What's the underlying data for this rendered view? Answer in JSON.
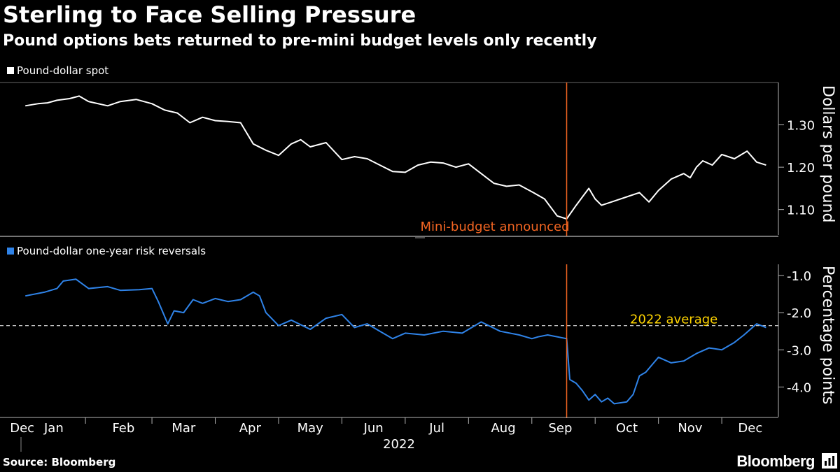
{
  "header": {
    "title": "Sterling to Face Selling Pressure",
    "subtitle": "Pound options bets returned to pre-mini budget levels only recently"
  },
  "footer": {
    "source": "Source: Bloomberg",
    "brand": "Bloomberg"
  },
  "colors": {
    "background": "#000000",
    "spot_line": "#ffffff",
    "rr_line": "#2f83e8",
    "event_line": "#f26522",
    "event_text": "#f26522",
    "average_text": "#ffd400",
    "axis": "#b3b3b3"
  },
  "chart_data": [
    {
      "type": "line",
      "legend": "Pound-dollar spot",
      "ylabel": "Dollars per pound",
      "ylim": [
        1.04,
        1.4
      ],
      "yticks": [
        1.1,
        1.2,
        1.3
      ],
      "ytick_labels": [
        "1.10",
        "1.20",
        "1.30"
      ],
      "x": [
        0,
        0.2,
        0.35,
        0.5,
        0.7,
        0.85,
        1.0,
        1.3,
        1.5,
        1.75,
        2.0,
        2.2,
        2.4,
        2.6,
        2.8,
        3.0,
        3.2,
        3.4,
        3.6,
        3.8,
        4.0,
        4.2,
        4.35,
        4.5,
        4.75,
        5.0,
        5.2,
        5.4,
        5.6,
        5.8,
        6.0,
        6.2,
        6.4,
        6.6,
        6.8,
        7.0,
        7.2,
        7.4,
        7.6,
        7.8,
        8.0,
        8.2,
        8.4,
        8.55,
        8.7,
        8.8,
        8.9,
        9.0,
        9.1,
        9.3,
        9.5,
        9.7,
        9.85,
        10.0,
        10.2,
        10.4,
        10.5,
        10.6,
        10.7,
        10.85,
        11.0,
        11.2,
        11.4,
        11.55,
        11.7
      ],
      "values": [
        1.345,
        1.35,
        1.352,
        1.358,
        1.362,
        1.368,
        1.355,
        1.345,
        1.355,
        1.36,
        1.35,
        1.335,
        1.328,
        1.305,
        1.318,
        1.31,
        1.308,
        1.305,
        1.255,
        1.24,
        1.228,
        1.255,
        1.265,
        1.248,
        1.258,
        1.218,
        1.225,
        1.22,
        1.205,
        1.19,
        1.188,
        1.205,
        1.212,
        1.21,
        1.2,
        1.208,
        1.185,
        1.162,
        1.155,
        1.158,
        1.142,
        1.125,
        1.085,
        1.078,
        1.11,
        1.13,
        1.15,
        1.125,
        1.11,
        1.12,
        1.13,
        1.14,
        1.118,
        1.145,
        1.172,
        1.185,
        1.175,
        1.2,
        1.215,
        1.205,
        1.23,
        1.22,
        1.238,
        1.212,
        1.205
      ],
      "annotation": "Mini-budget announced",
      "event_x": 8.55
    },
    {
      "type": "line",
      "legend": "Pound-dollar one-year risk reversals",
      "ylabel": "Percentage points",
      "ylim": [
        -4.8,
        -0.7
      ],
      "yticks": [
        -1.0,
        -2.0,
        -3.0,
        -4.0
      ],
      "ytick_labels": [
        "-1.0",
        "-2.0",
        "-3.0",
        "-4.0"
      ],
      "x": [
        0,
        0.3,
        0.5,
        0.6,
        0.8,
        1.0,
        1.3,
        1.5,
        1.8,
        2.0,
        2.1,
        2.25,
        2.35,
        2.5,
        2.65,
        2.8,
        3.0,
        3.2,
        3.4,
        3.6,
        3.7,
        3.8,
        4.0,
        4.2,
        4.5,
        4.75,
        5.0,
        5.2,
        5.4,
        5.6,
        5.8,
        6.0,
        6.3,
        6.6,
        6.9,
        7.2,
        7.5,
        7.8,
        8.0,
        8.1,
        8.25,
        8.55,
        8.6,
        8.7,
        8.8,
        8.9,
        9.0,
        9.1,
        9.2,
        9.3,
        9.5,
        9.6,
        9.7,
        9.8,
        10.0,
        10.2,
        10.4,
        10.6,
        10.8,
        11.0,
        11.2,
        11.35,
        11.55,
        11.7
      ],
      "values": [
        -1.55,
        -1.45,
        -1.35,
        -1.15,
        -1.1,
        -1.35,
        -1.3,
        -1.4,
        -1.38,
        -1.35,
        -1.7,
        -2.3,
        -1.95,
        -2.0,
        -1.65,
        -1.75,
        -1.62,
        -1.7,
        -1.65,
        -1.45,
        -1.55,
        -2.0,
        -2.35,
        -2.2,
        -2.45,
        -2.15,
        -2.05,
        -2.4,
        -2.3,
        -2.5,
        -2.7,
        -2.55,
        -2.6,
        -2.5,
        -2.55,
        -2.25,
        -2.5,
        -2.6,
        -2.7,
        -2.65,
        -2.6,
        -2.7,
        -3.8,
        -3.9,
        -4.1,
        -4.35,
        -4.2,
        -4.4,
        -4.3,
        -4.45,
        -4.4,
        -4.2,
        -3.7,
        -3.6,
        -3.2,
        -3.35,
        -3.3,
        -3.1,
        -2.95,
        -3.0,
        -2.8,
        -2.6,
        -2.3,
        -2.4
      ],
      "average_value": -2.35,
      "average_label": "2022 average",
      "event_x": 8.55
    }
  ],
  "xaxis": {
    "month_labels": [
      "Dec",
      "Jan",
      "Feb",
      "Mar",
      "Apr",
      "May",
      "Jun",
      "Jul",
      "Aug",
      "Sep",
      "Oct",
      "Nov",
      "Dec"
    ],
    "month_positions": [
      -0.05,
      0.45,
      1.55,
      2.5,
      3.55,
      4.5,
      5.5,
      6.5,
      7.55,
      8.45,
      9.5,
      10.5,
      11.45
    ],
    "tick_positions": [
      0.95,
      2.0,
      3.0,
      4.0,
      5.0,
      6.0,
      7.0,
      8.0,
      9.0,
      10.0,
      11.0
    ],
    "year_label": "2022",
    "xlim": [
      -0.4,
      11.85
    ]
  }
}
